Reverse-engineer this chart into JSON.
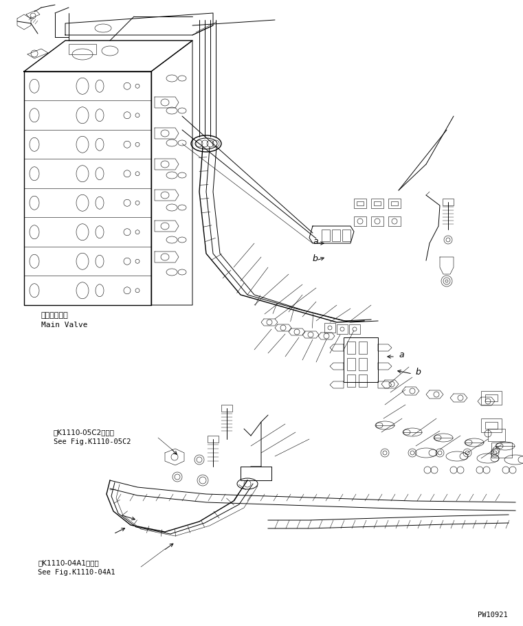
{
  "bg_color": "#ffffff",
  "line_color": "#000000",
  "fig_width": 7.61,
  "fig_height": 9.12,
  "dpi": 100,
  "title_code": "PW10921",
  "label_main_valve_jp": "メインバルブ",
  "label_main_valve_en": "Main Valve",
  "label_ref1_jp": "第K1110-05C2図参照",
  "label_ref1_en": "See Fig.K1110-05C2",
  "label_ref2_jp": "第K1110-04A1図参照",
  "label_ref2_en": "See Fig.K1110-04A1",
  "label_a1": "a",
  "label_b1": "b",
  "label_a2": "a",
  "label_b2": "b"
}
